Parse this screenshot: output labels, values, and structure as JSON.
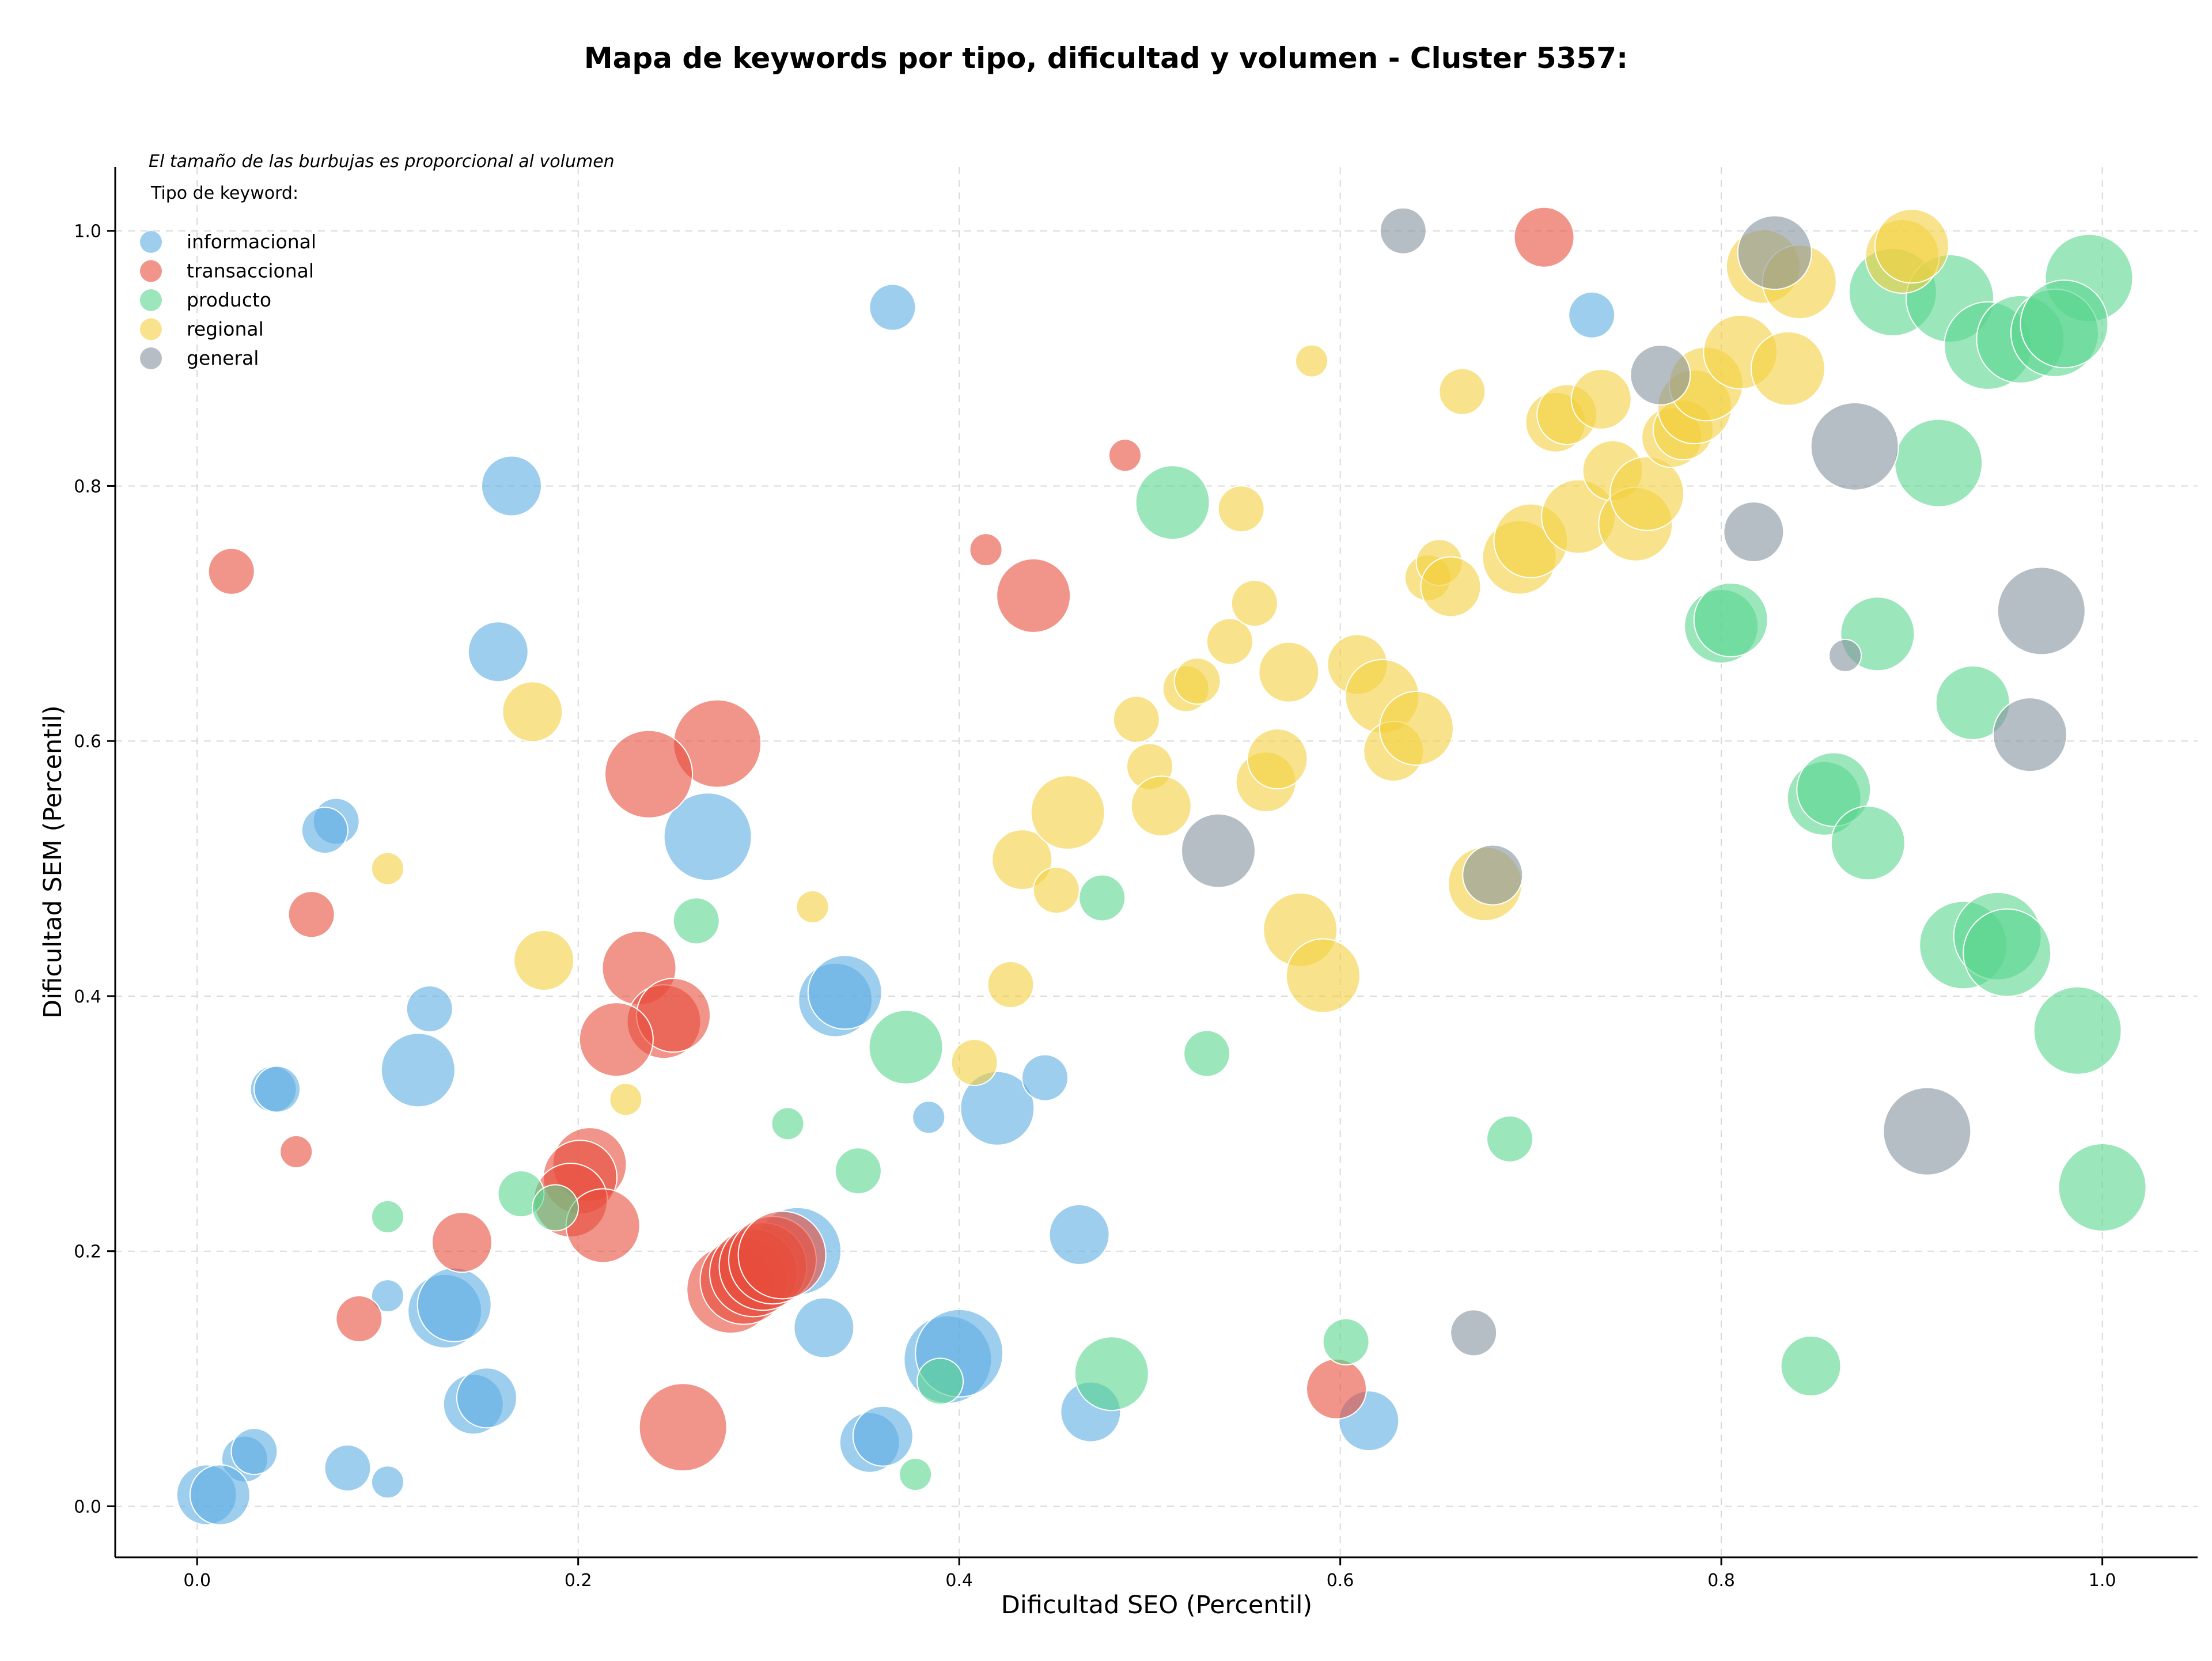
{
  "chart_data": {
    "type": "scatter",
    "title": "Mapa de keywords por tipo, dificultad y volumen - Cluster 5357:",
    "xlabel": "Dificultad SEO (Percentil)",
    "ylabel": "Dificultad SEM (Percentil)",
    "xlim": [
      -0.043,
      1.05
    ],
    "ylim": [
      -0.04,
      1.05
    ],
    "xticks": [
      0.0,
      0.2,
      0.4,
      0.6,
      0.8,
      1.0
    ],
    "yticks": [
      0.0,
      0.2,
      0.4,
      0.6,
      0.8,
      1.0
    ],
    "xtick_labels": [
      "0.0",
      "0.2",
      "0.4",
      "0.6",
      "0.8",
      "1.0"
    ],
    "ytick_labels": [
      "0.0",
      "0.2",
      "0.4",
      "0.6",
      "0.8",
      "1.0"
    ],
    "grid": true,
    "legend_title": "Tipo de keyword:",
    "legend_position": "top-left",
    "size_note": "El tamaño de las burbujas es proporcional al volumen",
    "series": [
      {
        "name": "informacional",
        "color": "#5DADE2",
        "points": [
          [
            0.365,
            0.94,
            2
          ],
          [
            0.165,
            0.8,
            3
          ],
          [
            0.158,
            0.67,
            3
          ],
          [
            0.073,
            0.537,
            2
          ],
          [
            0.067,
            0.53,
            2
          ],
          [
            0.268,
            0.525,
            5
          ],
          [
            0.122,
            0.39,
            2
          ],
          [
            0.116,
            0.342,
            4
          ],
          [
            0.04,
            0.327,
            2
          ],
          [
            0.042,
            0.327,
            2
          ],
          [
            0.335,
            0.397,
            4
          ],
          [
            0.34,
            0.403,
            4
          ],
          [
            0.384,
            0.305,
            1
          ],
          [
            0.42,
            0.312,
            4
          ],
          [
            0.445,
            0.336,
            2
          ],
          [
            0.463,
            0.213,
            3
          ],
          [
            0.315,
            0.2,
            5
          ],
          [
            0.1,
            0.165,
            1
          ],
          [
            0.13,
            0.153,
            4
          ],
          [
            0.135,
            0.158,
            4
          ],
          [
            0.329,
            0.14,
            3
          ],
          [
            0.145,
            0.08,
            3
          ],
          [
            0.152,
            0.085,
            3
          ],
          [
            0.394,
            0.115,
            5
          ],
          [
            0.4,
            0.12,
            5
          ],
          [
            0.025,
            0.037,
            2
          ],
          [
            0.03,
            0.043,
            2
          ],
          [
            0.005,
            0.009,
            3
          ],
          [
            0.012,
            0.009,
            3
          ],
          [
            0.079,
            0.03,
            2
          ],
          [
            0.1,
            0.019,
            1
          ],
          [
            0.353,
            0.05,
            3
          ],
          [
            0.36,
            0.055,
            3
          ],
          [
            0.469,
            0.074,
            3
          ],
          [
            0.615,
            0.067,
            3
          ],
          [
            0.732,
            0.934,
            2
          ]
        ]
      },
      {
        "name": "transaccional",
        "color": "#E74C3C",
        "points": [
          [
            0.018,
            0.733,
            2
          ],
          [
            0.707,
            0.995,
            3
          ],
          [
            0.487,
            0.824,
            1
          ],
          [
            0.414,
            0.75,
            1
          ],
          [
            0.439,
            0.714,
            4
          ],
          [
            0.273,
            0.598,
            5
          ],
          [
            0.237,
            0.574,
            5
          ],
          [
            0.06,
            0.464,
            2
          ],
          [
            0.232,
            0.422,
            4
          ],
          [
            0.245,
            0.38,
            4
          ],
          [
            0.25,
            0.385,
            4
          ],
          [
            0.22,
            0.366,
            4
          ],
          [
            0.052,
            0.278,
            1
          ],
          [
            0.206,
            0.268,
            4
          ],
          [
            0.201,
            0.258,
            4
          ],
          [
            0.196,
            0.24,
            4
          ],
          [
            0.213,
            0.22,
            4
          ],
          [
            0.139,
            0.207,
            3
          ],
          [
            0.085,
            0.147,
            2
          ],
          [
            0.28,
            0.17,
            5
          ],
          [
            0.287,
            0.177,
            5
          ],
          [
            0.292,
            0.183,
            5
          ],
          [
            0.297,
            0.188,
            5
          ],
          [
            0.302,
            0.193,
            5
          ],
          [
            0.307,
            0.197,
            5
          ],
          [
            0.255,
            0.062,
            5
          ],
          [
            0.598,
            0.092,
            3
          ]
        ]
      },
      {
        "name": "producto",
        "color": "#58D68D",
        "points": [
          [
            0.512,
            0.787,
            4
          ],
          [
            0.262,
            0.459,
            2
          ],
          [
            0.475,
            0.477,
            2
          ],
          [
            0.372,
            0.36,
            4
          ],
          [
            0.53,
            0.355,
            2
          ],
          [
            0.31,
            0.3,
            1
          ],
          [
            0.347,
            0.263,
            2
          ],
          [
            0.17,
            0.245,
            2
          ],
          [
            0.188,
            0.234,
            2
          ],
          [
            0.1,
            0.227,
            1
          ],
          [
            0.689,
            0.288,
            2
          ],
          [
            0.39,
            0.098,
            2
          ],
          [
            0.48,
            0.104,
            4
          ],
          [
            0.603,
            0.129,
            2
          ],
          [
            0.377,
            0.025,
            1
          ],
          [
            0.847,
            0.11,
            3
          ],
          [
            0.993,
            0.963,
            5
          ],
          [
            0.89,
            0.952,
            5
          ],
          [
            0.92,
            0.947,
            5
          ],
          [
            0.94,
            0.91,
            5
          ],
          [
            0.957,
            0.915,
            5
          ],
          [
            0.975,
            0.92,
            5
          ],
          [
            0.98,
            0.927,
            5
          ],
          [
            0.914,
            0.818,
            5
          ],
          [
            0.8,
            0.69,
            4
          ],
          [
            0.805,
            0.695,
            4
          ],
          [
            0.882,
            0.684,
            4
          ],
          [
            0.932,
            0.63,
            4
          ],
          [
            0.854,
            0.555,
            4
          ],
          [
            0.859,
            0.562,
            4
          ],
          [
            0.877,
            0.52,
            4
          ],
          [
            0.927,
            0.44,
            5
          ],
          [
            0.945,
            0.447,
            5
          ],
          [
            0.95,
            0.434,
            5
          ],
          [
            0.987,
            0.373,
            5
          ],
          [
            1.0,
            0.25,
            5
          ]
        ]
      },
      {
        "name": "regional",
        "color": "#F4D03F",
        "points": [
          [
            0.176,
            0.623,
            3
          ],
          [
            0.1,
            0.5,
            1
          ],
          [
            0.323,
            0.47,
            1
          ],
          [
            0.182,
            0.428,
            3
          ],
          [
            0.225,
            0.319,
            1
          ],
          [
            0.408,
            0.348,
            2
          ],
          [
            0.427,
            0.409,
            2
          ],
          [
            0.433,
            0.507,
            3
          ],
          [
            0.451,
            0.483,
            2
          ],
          [
            0.457,
            0.544,
            4
          ],
          [
            0.493,
            0.617,
            2
          ],
          [
            0.5,
            0.58,
            2
          ],
          [
            0.506,
            0.549,
            3
          ],
          [
            0.519,
            0.641,
            2
          ],
          [
            0.525,
            0.647,
            2
          ],
          [
            0.542,
            0.678,
            2
          ],
          [
            0.548,
            0.782,
            2
          ],
          [
            0.555,
            0.708,
            2
          ],
          [
            0.561,
            0.568,
            3
          ],
          [
            0.567,
            0.586,
            3
          ],
          [
            0.573,
            0.654,
            3
          ],
          [
            0.579,
            0.452,
            4
          ],
          [
            0.591,
            0.416,
            4
          ],
          [
            0.585,
            0.898,
            1
          ],
          [
            0.609,
            0.66,
            3
          ],
          [
            0.622,
            0.635,
            4
          ],
          [
            0.628,
            0.592,
            3
          ],
          [
            0.64,
            0.61,
            4
          ],
          [
            0.646,
            0.728,
            2
          ],
          [
            0.652,
            0.74,
            2
          ],
          [
            0.658,
            0.721,
            3
          ],
          [
            0.664,
            0.874,
            2
          ],
          [
            0.676,
            0.488,
            4
          ],
          [
            0.694,
            0.744,
            4
          ],
          [
            0.7,
            0.757,
            4
          ],
          [
            0.713,
            0.85,
            3
          ],
          [
            0.719,
            0.856,
            3
          ],
          [
            0.725,
            0.776,
            4
          ],
          [
            0.737,
            0.868,
            3
          ],
          [
            0.743,
            0.812,
            3
          ],
          [
            0.755,
            0.77,
            4
          ],
          [
            0.761,
            0.794,
            4
          ],
          [
            0.774,
            0.838,
            3
          ],
          [
            0.78,
            0.844,
            3
          ],
          [
            0.786,
            0.862,
            4
          ],
          [
            0.792,
            0.88,
            4
          ],
          [
            0.81,
            0.905,
            4
          ],
          [
            0.822,
            0.972,
            4
          ],
          [
            0.835,
            0.892,
            4
          ],
          [
            0.841,
            0.96,
            4
          ],
          [
            0.895,
            0.98,
            4
          ],
          [
            0.9,
            0.988,
            4
          ]
        ]
      },
      {
        "name": "general",
        "color": "#85929E",
        "points": [
          [
            0.633,
            1.0,
            2
          ],
          [
            0.828,
            0.983,
            4
          ],
          [
            0.768,
            0.887,
            3
          ],
          [
            0.87,
            0.831,
            5
          ],
          [
            0.817,
            0.764,
            3
          ],
          [
            0.968,
            0.702,
            5
          ],
          [
            0.865,
            0.667,
            1
          ],
          [
            0.962,
            0.605,
            4
          ],
          [
            0.536,
            0.514,
            4
          ],
          [
            0.68,
            0.495,
            3
          ],
          [
            0.908,
            0.294,
            5
          ],
          [
            0.67,
            0.136,
            2
          ]
        ]
      }
    ]
  }
}
